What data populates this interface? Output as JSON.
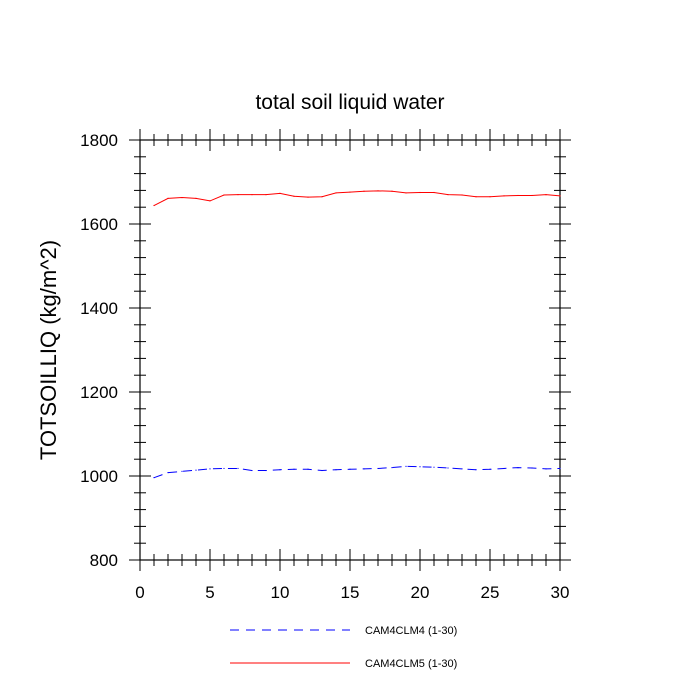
{
  "chart_data": {
    "type": "line",
    "title": "total soil liquid water",
    "xlabel": "",
    "ylabel": "TOTSOILLIQ  (kg/m^2)",
    "xlim": [
      0,
      30
    ],
    "ylim": [
      800,
      1800
    ],
    "xticks": [
      0,
      5,
      10,
      15,
      20,
      25,
      30
    ],
    "yticks": [
      800,
      1000,
      1200,
      1400,
      1600,
      1800
    ],
    "x_minor_step": 1,
    "y_minor_step": 40,
    "grid": false,
    "legend_position": "bottom",
    "x": [
      1,
      2,
      3,
      4,
      5,
      6,
      7,
      8,
      9,
      10,
      11,
      12,
      13,
      14,
      15,
      16,
      17,
      18,
      19,
      20,
      21,
      22,
      23,
      24,
      25,
      26,
      27,
      28,
      29,
      30
    ],
    "series": [
      {
        "name": "CAM4CLM4 (1-30)",
        "color": "#0000ff",
        "dash": "dashed",
        "values": [
          996,
          1008,
          1011,
          1014,
          1017,
          1018,
          1018,
          1013,
          1013,
          1015,
          1016,
          1016,
          1013,
          1015,
          1016,
          1017,
          1018,
          1020,
          1023,
          1022,
          1021,
          1019,
          1017,
          1015,
          1016,
          1018,
          1020,
          1019,
          1017,
          1018
        ]
      },
      {
        "name": "CAM4CLM5 (1-30)",
        "color": "#ff0000",
        "dash": "solid",
        "values": [
          1644,
          1661,
          1663,
          1661,
          1655,
          1669,
          1670,
          1670,
          1670,
          1673,
          1666,
          1664,
          1665,
          1674,
          1676,
          1678,
          1679,
          1678,
          1674,
          1675,
          1675,
          1670,
          1669,
          1665,
          1665,
          1667,
          1668,
          1668,
          1670,
          1667
        ]
      }
    ]
  }
}
